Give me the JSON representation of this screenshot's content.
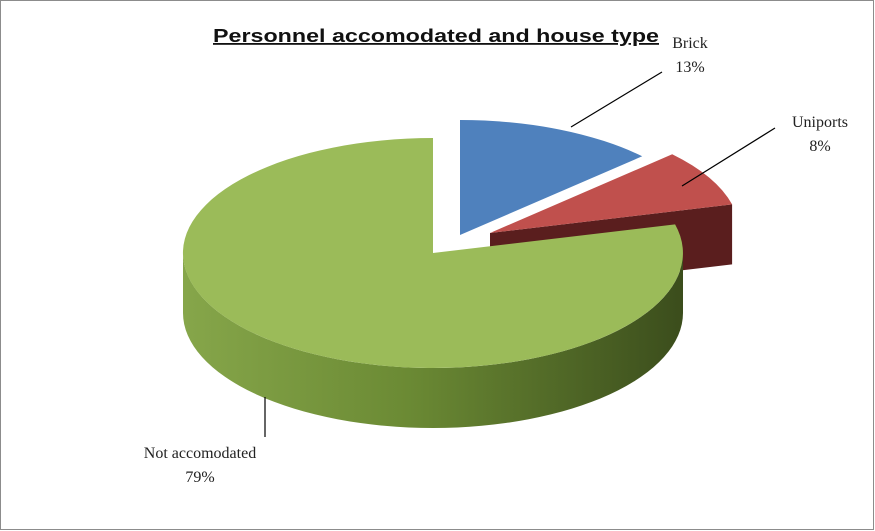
{
  "chart_data": {
    "type": "pie",
    "title": "Personnel accomodated and house type",
    "categories": [
      "Brick",
      "Uniports",
      "Not accomodated"
    ],
    "values": [
      13,
      8,
      79
    ],
    "value_labels": [
      "13%",
      "8%",
      "79%"
    ],
    "colors": [
      "#4f81bd",
      "#c0504d",
      "#9bbb59"
    ]
  }
}
